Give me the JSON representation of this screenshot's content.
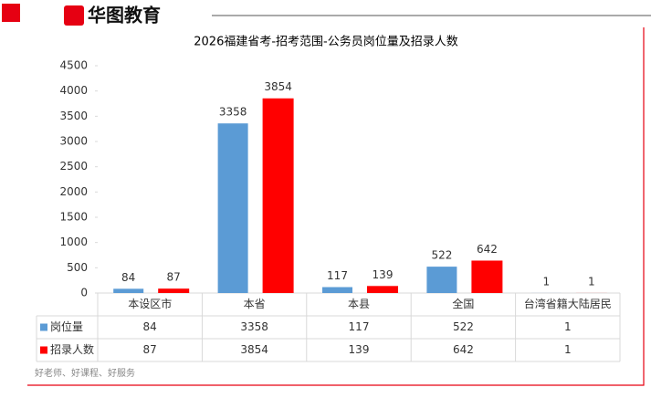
{
  "header": {
    "logo": "华图教育"
  },
  "chart_data": {
    "type": "bar",
    "title": "2026福建省考-招考范围-公务员岗位量及招录人数",
    "categories": [
      "本设区市",
      "本省",
      "本县",
      "全国",
      "台湾省籍大陆居民"
    ],
    "series": [
      {
        "name": "岗位量",
        "color": "#5b9bd5",
        "values": [
          84,
          3358,
          117,
          522,
          1
        ]
      },
      {
        "name": "招录人数",
        "color": "#ff0000",
        "values": [
          87,
          3854,
          139,
          642,
          1
        ]
      }
    ],
    "ylim": [
      0,
      4500
    ],
    "yticks": [
      0,
      500,
      1000,
      1500,
      2000,
      2500,
      3000,
      3500,
      4000,
      4500
    ],
    "data_table": true
  },
  "footer": {
    "slogan": "好老师、好课程、好服务"
  }
}
